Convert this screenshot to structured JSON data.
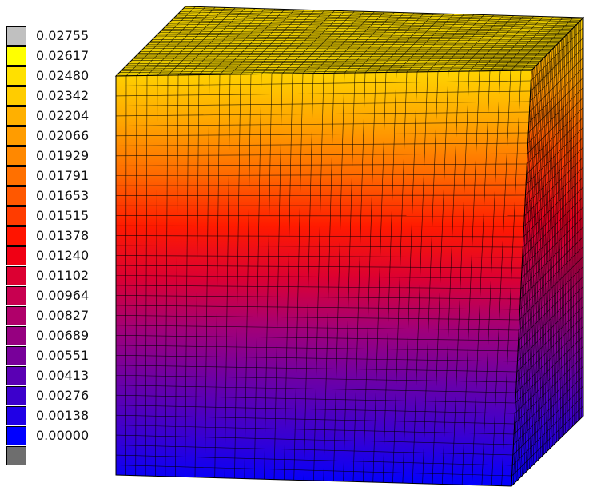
{
  "legend": {
    "entries": [
      {
        "label": "0.02755",
        "color": "#c0c0c0"
      },
      {
        "label": "0.02617",
        "color": "#ffff00"
      },
      {
        "label": "0.02480",
        "color": "#ffe000"
      },
      {
        "label": "0.02342",
        "color": "#ffcc00"
      },
      {
        "label": "0.02204",
        "color": "#ffb000"
      },
      {
        "label": "0.02066",
        "color": "#ff9c00"
      },
      {
        "label": "0.01929",
        "color": "#ff8800"
      },
      {
        "label": "0.01791",
        "color": "#ff7000"
      },
      {
        "label": "0.01653",
        "color": "#ff5800"
      },
      {
        "label": "0.01515",
        "color": "#ff3c00"
      },
      {
        "label": "0.01378",
        "color": "#ff1400"
      },
      {
        "label": "0.01240",
        "color": "#f00014"
      },
      {
        "label": "0.01102",
        "color": "#dc0032"
      },
      {
        "label": "0.00964",
        "color": "#c80050"
      },
      {
        "label": "0.00827",
        "color": "#b0006a"
      },
      {
        "label": "0.00689",
        "color": "#960080"
      },
      {
        "label": "0.00551",
        "color": "#78009a"
      },
      {
        "label": "0.00413",
        "color": "#5a00b4"
      },
      {
        "label": "0.00276",
        "color": "#3c00cc"
      },
      {
        "label": "0.00138",
        "color": "#2000e6"
      },
      {
        "label": "0.00000",
        "color": "#0000ff"
      }
    ],
    "below_min_color": "#6e6e6e"
  },
  "cube": {
    "top_face_color": "#e6c800",
    "front_gradient": [
      "#ffd400",
      "#ffa500",
      "#ff6a00",
      "#ff1a00",
      "#dc0032",
      "#a0007a",
      "#6a00a8",
      "#3a00d0",
      "#0000ff"
    ],
    "side_gradient": [
      "#ffd400",
      "#ff9800",
      "#ff4a00",
      "#e80020",
      "#b4005e",
      "#7a009a",
      "#3c00cc",
      "#0000ff"
    ]
  }
}
